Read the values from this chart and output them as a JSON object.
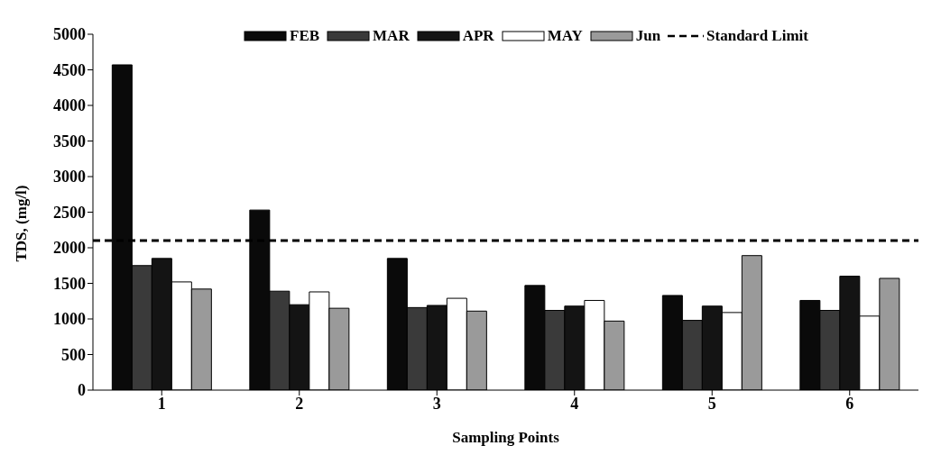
{
  "chart_data": {
    "type": "bar",
    "xlabel": "Sampling Points",
    "ylabel": "TDS, (mg/l)",
    "categories": [
      "1",
      "2",
      "3",
      "4",
      "5",
      "6"
    ],
    "series": [
      {
        "name": "FEB",
        "color": "#0a0a0a",
        "values": [
          4570,
          2530,
          1850,
          1470,
          1330,
          1260
        ]
      },
      {
        "name": "MAR",
        "color": "#3a3a3a",
        "values": [
          1750,
          1390,
          1160,
          1120,
          980,
          1120
        ]
      },
      {
        "name": "APR",
        "color": "#141414",
        "values": [
          1850,
          1200,
          1190,
          1180,
          1180,
          1600
        ]
      },
      {
        "name": "MAY",
        "color": "#ffffff",
        "values": [
          1520,
          1380,
          1290,
          1260,
          1090,
          1040
        ]
      },
      {
        "name": "Jun",
        "color": "#9a9a9a",
        "values": [
          1420,
          1150,
          1110,
          970,
          1890,
          1570
        ]
      }
    ],
    "ylim": [
      0,
      5000
    ],
    "yticks": [
      0,
      500,
      1000,
      1500,
      2000,
      2500,
      3000,
      3500,
      4000,
      4500,
      5000
    ],
    "ref_lines": [
      {
        "axis": "y",
        "value": 2100,
        "label": "Standard Limit",
        "color": "#000000",
        "line_style": "dashed"
      }
    ],
    "legend": "top",
    "grid": false
  }
}
